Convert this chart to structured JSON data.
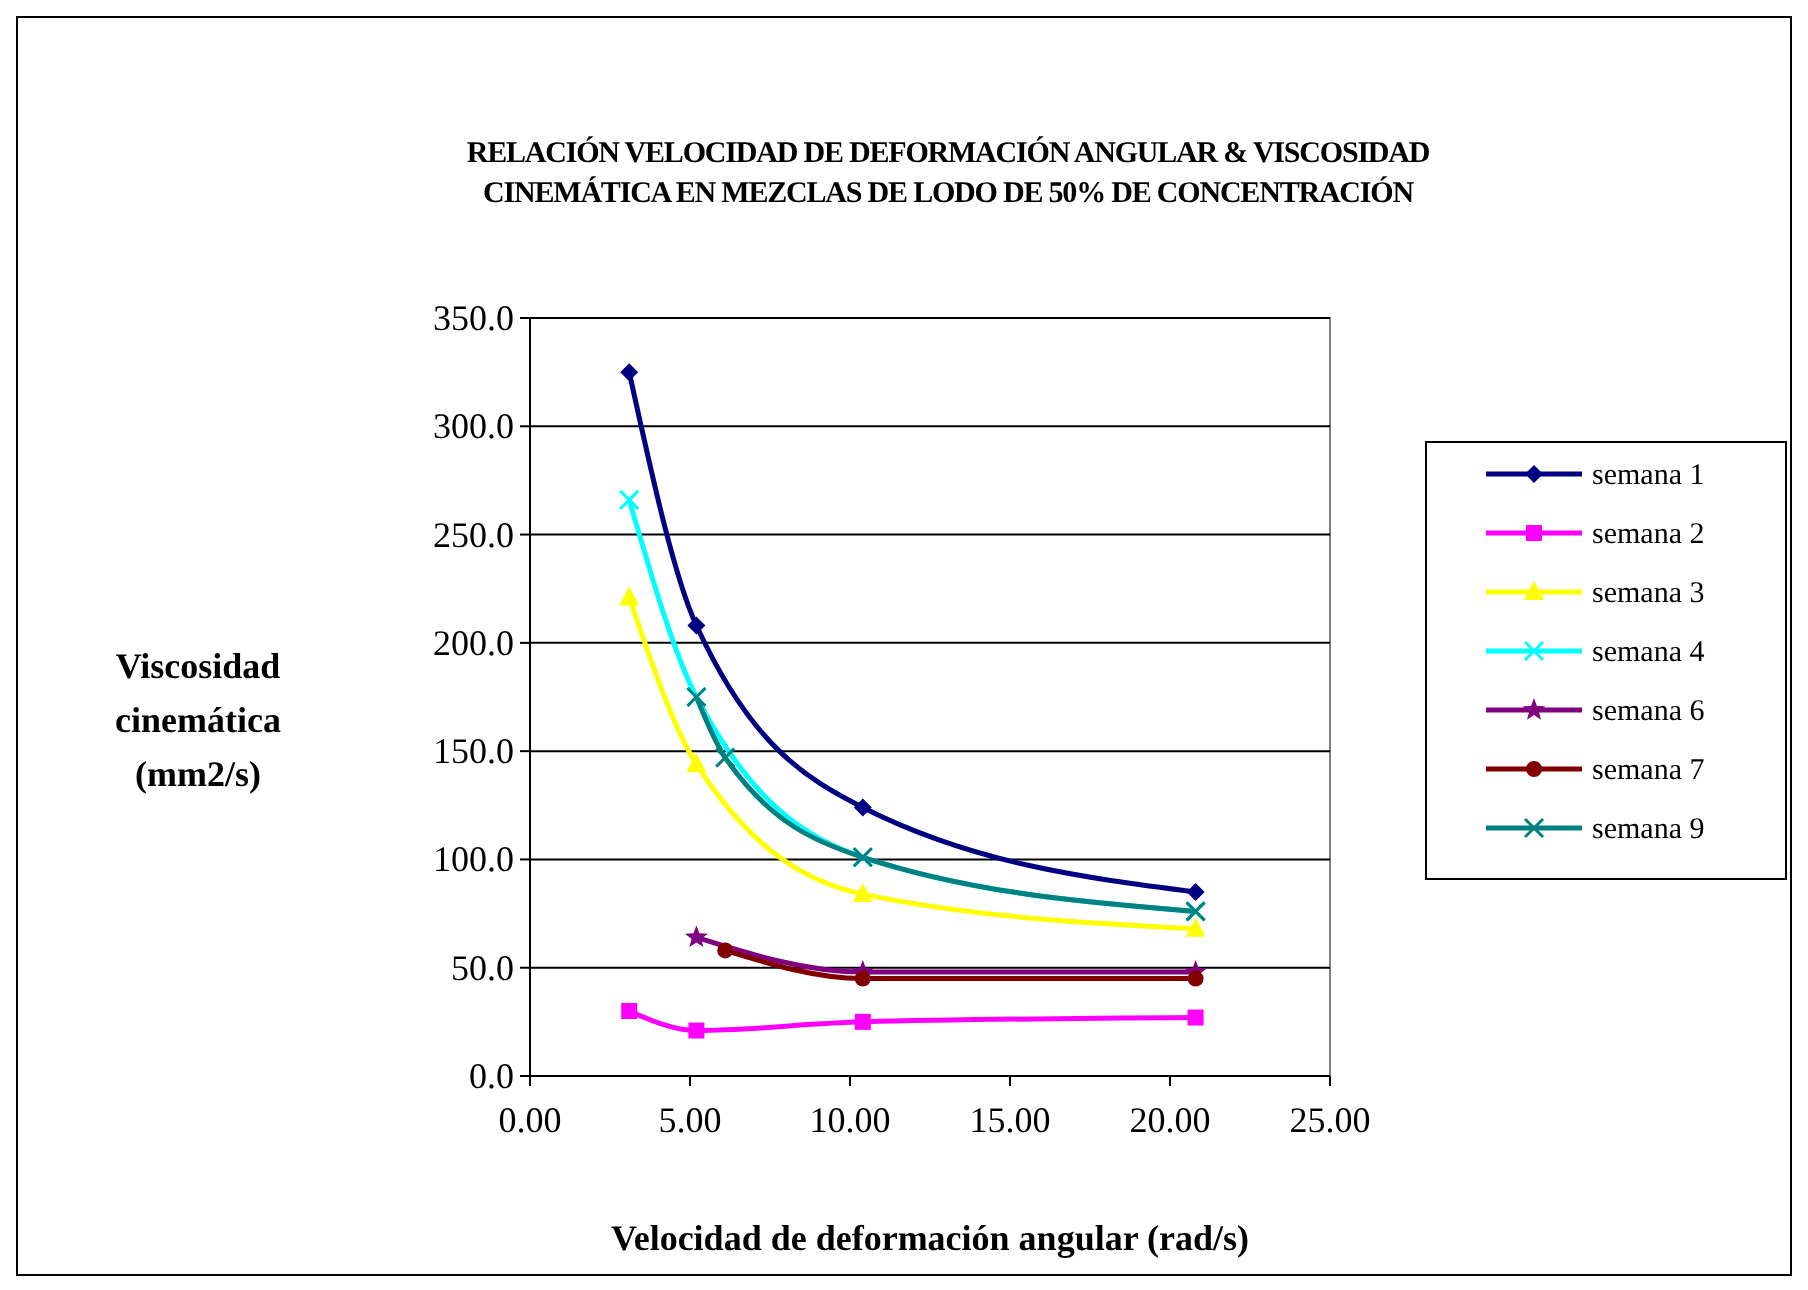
{
  "chart_data": {
    "type": "line",
    "title": "RELACIÓN VELOCIDAD DE DEFORMACIÓN ANGULAR & VISCOSIDAD\nCINEMÁTICA EN MEZCLAS DE LODO DE 50% DE CONCENTRACIÓN",
    "xlabel": "Velocidad de deformación angular (rad/s)",
    "ylabel": "Viscosidad\ncinemática\n(mm2/s)",
    "xlim": [
      0,
      25
    ],
    "xticks": [
      {
        "value": 0,
        "label": "0.00"
      },
      {
        "value": 5,
        "label": "5.00"
      },
      {
        "value": 10,
        "label": "10.00"
      },
      {
        "value": 15,
        "label": "15.00"
      },
      {
        "value": 20,
        "label": "20.00"
      },
      {
        "value": 25,
        "label": "25.00"
      }
    ],
    "ylim": [
      0,
      350
    ],
    "yticks": [
      {
        "value": 0,
        "label": "0.0"
      },
      {
        "value": 50,
        "label": "50.0"
      },
      {
        "value": 100,
        "label": "100.0"
      },
      {
        "value": 150,
        "label": "150.0"
      },
      {
        "value": 200,
        "label": "200.0"
      },
      {
        "value": 250,
        "label": "250.0"
      },
      {
        "value": 300,
        "label": "300.0"
      },
      {
        "value": 350,
        "label": "350.0"
      }
    ],
    "grid": "y",
    "legend": "right",
    "series": [
      {
        "name": "semana 1",
        "color": "#000080",
        "marker": "diamond",
        "x": [
          3.1,
          5.2,
          10.4,
          20.8
        ],
        "values": [
          325,
          208,
          124,
          85
        ]
      },
      {
        "name": "semana 2",
        "color": "#ff00ff",
        "marker": "square",
        "x": [
          3.1,
          5.2,
          10.4,
          20.8
        ],
        "values": [
          30,
          21,
          25,
          27
        ]
      },
      {
        "name": "semana 3",
        "color": "#ffff00",
        "marker": "triangle",
        "x": [
          3.1,
          5.2,
          10.4,
          20.8
        ],
        "values": [
          221,
          144,
          84,
          68
        ]
      },
      {
        "name": "semana 4",
        "color": "#00ffff",
        "marker": "cross",
        "x": [
          3.1,
          5.2,
          10.4,
          20.8
        ],
        "values": [
          266,
          175,
          101,
          76
        ]
      },
      {
        "name": "semana 6",
        "color": "#800080",
        "marker": "star",
        "x": [
          5.2,
          10.4,
          20.8
        ],
        "values": [
          64,
          48,
          48
        ]
      },
      {
        "name": "semana 7",
        "color": "#800000",
        "marker": "circle",
        "x": [
          6.1,
          10.4,
          20.8
        ],
        "values": [
          58,
          45,
          45
        ]
      },
      {
        "name": "semana 9",
        "color": "#008080",
        "marker": "cross",
        "x": [
          5.2,
          6.1,
          10.4,
          20.8
        ],
        "values": [
          175,
          147,
          101,
          76
        ]
      }
    ]
  }
}
